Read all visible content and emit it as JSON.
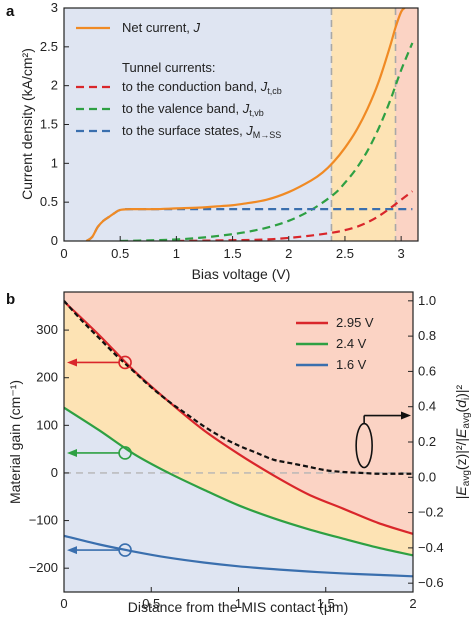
{
  "chart_data": [
    {
      "panel": "a",
      "type": "line",
      "xlabel": "Bias voltage (V)",
      "ylabel": "Current density (kA/cm²)",
      "xlim": [
        0,
        3.15
      ],
      "ylim": [
        0,
        3.0
      ],
      "xticks": [
        "0",
        "0.5",
        "1",
        "1.5",
        "2",
        "2.5",
        "3"
      ],
      "yticks": [
        "0",
        "0.5",
        "1",
        "1.5",
        "2",
        "2.5",
        "3"
      ],
      "regions": [
        {
          "from": 0,
          "to": 2.38,
          "color": "#dfe5f2"
        },
        {
          "from": 2.38,
          "to": 2.95,
          "color": "#fde3b4"
        },
        {
          "from": 2.95,
          "to": 3.15,
          "color": "#fbd3c4"
        }
      ],
      "vlines": [
        2.38,
        2.95
      ],
      "legend_title": "Tunnel currents:",
      "legend_position": "top-left",
      "series": [
        {
          "name": "Net current, J",
          "label_text": "Net current, ",
          "label_sym": "J",
          "label_sub": "",
          "color": "#f08a24",
          "dash": "solid",
          "x": [
            0.2,
            0.25,
            0.3,
            0.35,
            0.4,
            0.45,
            0.5,
            0.6,
            0.8,
            1.0,
            1.2,
            1.4,
            1.5,
            1.6,
            1.8,
            2.0,
            2.2,
            2.3,
            2.4,
            2.5,
            2.6,
            2.7,
            2.8,
            2.9,
            2.95,
            3.0,
            3.03
          ],
          "y": [
            0,
            0.05,
            0.18,
            0.26,
            0.31,
            0.36,
            0.4,
            0.41,
            0.41,
            0.42,
            0.43,
            0.45,
            0.46,
            0.48,
            0.53,
            0.63,
            0.78,
            0.88,
            1.02,
            1.2,
            1.42,
            1.7,
            2.05,
            2.5,
            2.75,
            2.95,
            3.0
          ]
        },
        {
          "name": "to the conduction band, J_t,cb",
          "label_text": "to the conduction band, ",
          "label_sym": "J",
          "label_sub": "t,cb",
          "color": "#d9262b",
          "dash": "dashed",
          "x": [
            1.0,
            1.5,
            1.8,
            2.0,
            2.2,
            2.4,
            2.5,
            2.6,
            2.7,
            2.8,
            2.9,
            3.0,
            3.1
          ],
          "y": [
            0,
            0.01,
            0.02,
            0.04,
            0.07,
            0.11,
            0.14,
            0.18,
            0.24,
            0.32,
            0.42,
            0.53,
            0.64
          ]
        },
        {
          "name": "to the valence band, J_t,vb",
          "label_text": "to the valence band, ",
          "label_sym": "J",
          "label_sub": "t,vb",
          "color": "#2ea043",
          "dash": "dashed",
          "x": [
            0.5,
            0.8,
            1.0,
            1.2,
            1.4,
            1.6,
            1.8,
            2.0,
            2.2,
            2.4,
            2.5,
            2.6,
            2.7,
            2.8,
            2.9,
            3.0,
            3.1
          ],
          "y": [
            0,
            0.01,
            0.02,
            0.04,
            0.07,
            0.11,
            0.17,
            0.26,
            0.4,
            0.6,
            0.75,
            0.93,
            1.16,
            1.45,
            1.8,
            2.2,
            2.55
          ]
        },
        {
          "name": "to the surface states, J_M→SS",
          "label_text": "to the surface states, ",
          "label_sym": "J",
          "label_sub": "M→SS",
          "color": "#3a6fae",
          "dash": "dashed",
          "x": [
            0.2,
            0.25,
            0.3,
            0.35,
            0.4,
            0.45,
            0.5,
            0.6,
            1.0,
            1.5,
            2.0,
            2.5,
            3.0,
            3.1
          ],
          "y": [
            0,
            0.05,
            0.18,
            0.26,
            0.31,
            0.36,
            0.4,
            0.41,
            0.41,
            0.41,
            0.41,
            0.41,
            0.41,
            0.41
          ]
        }
      ]
    },
    {
      "panel": "b",
      "type": "line",
      "xlabel": "Distance from the MIS contact (μm)",
      "ylabel": "Material gain (cm⁻¹)",
      "ylabel_right": "|E_avg(z)|²/|E_avg(d_i)|²",
      "ylabel_right_parts": [
        "|",
        "E",
        "avg",
        "(z)|²/|",
        "E",
        "avg",
        "(",
        "d",
        "i",
        ")|²"
      ],
      "xlim": [
        0,
        2
      ],
      "ylim": [
        -250,
        380
      ],
      "ylim_right": [
        -0.65,
        1.05
      ],
      "xticks": [
        "0",
        "0.5",
        "1",
        "1.5",
        "2"
      ],
      "yticks": [
        "-200",
        "-100",
        "0",
        "100",
        "200",
        "300"
      ],
      "yticks_right": [
        "-0.6",
        "-0.4",
        "-0.2",
        "0.0",
        "0.2",
        "0.4",
        "0.6",
        "0.8",
        "1.0"
      ],
      "legend_position": "top-right",
      "series": [
        {
          "name": "2.95 V",
          "color": "#d9262b",
          "x": [
            0,
            0.2,
            0.4,
            0.6,
            0.8,
            1.0,
            1.2,
            1.4,
            1.6,
            1.8,
            2.0
          ],
          "y": [
            360,
            290,
            215,
            150,
            90,
            40,
            -5,
            -45,
            -75,
            -105,
            -128
          ]
        },
        {
          "name": "2.4 V",
          "color": "#2ea043",
          "x": [
            0,
            0.2,
            0.4,
            0.6,
            0.8,
            1.0,
            1.2,
            1.4,
            1.6,
            1.8,
            2.0
          ],
          "y": [
            137,
            90,
            40,
            0,
            -35,
            -68,
            -95,
            -118,
            -138,
            -157,
            -173
          ]
        },
        {
          "name": "1.6 V",
          "color": "#3a6fae",
          "x": [
            0,
            0.2,
            0.4,
            0.6,
            0.8,
            1.0,
            1.2,
            1.4,
            1.6,
            1.8,
            2.0
          ],
          "y": [
            -132,
            -150,
            -165,
            -178,
            -188,
            -196,
            -202,
            -207,
            -211,
            -214,
            -217
          ]
        }
      ],
      "field_profile": {
        "axis": "right",
        "color": "#111111",
        "dash": "dashed",
        "x": [
          0,
          0.1,
          0.2,
          0.3,
          0.4,
          0.5,
          0.6,
          0.7,
          0.8,
          0.9,
          1.0,
          1.1,
          1.2,
          1.3,
          1.4,
          1.5,
          1.6,
          1.7,
          1.8,
          1.9,
          2.0
        ],
        "y": [
          1.0,
          0.89,
          0.79,
          0.69,
          0.6,
          0.51,
          0.43,
          0.36,
          0.29,
          0.23,
          0.18,
          0.14,
          0.1,
          0.08,
          0.06,
          0.04,
          0.03,
          0.025,
          0.02,
          0.02,
          0.02
        ]
      },
      "zero_line": 0,
      "markers": [
        {
          "x": 0.35,
          "y": 232,
          "color": "#d9262b"
        },
        {
          "x": 0.35,
          "y": 42,
          "color": "#2ea043"
        },
        {
          "x": 0.35,
          "y": -162,
          "color": "#3a6fae"
        }
      ],
      "right_marker": {
        "x": 1.72,
        "y": 0.18
      }
    }
  ]
}
